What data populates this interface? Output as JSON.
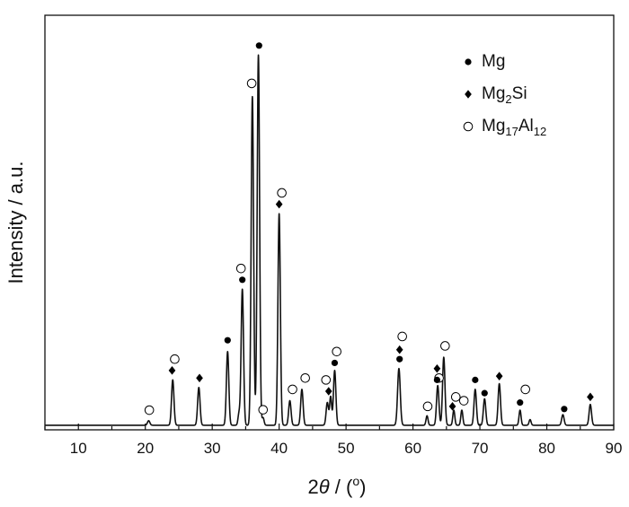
{
  "chart_data": {
    "type": "line",
    "title": "",
    "xlabel_parts": [
      "2",
      "θ",
      " / (",
      "o",
      ")"
    ],
    "ylabel": "Intensity / a.u.",
    "xlim": [
      5,
      90
    ],
    "ylim": [
      0,
      100
    ],
    "x_ticks": [
      10,
      20,
      30,
      40,
      50,
      60,
      70,
      80,
      90
    ],
    "x_tick_labels": [
      "10",
      "20",
      "30",
      "40",
      "50",
      "60",
      "70",
      "80",
      "90"
    ],
    "x_minor_step": 5,
    "y_ticks_shown": false,
    "grid": false,
    "legend_position": "top-right",
    "legend": [
      {
        "marker": "filled-circle",
        "parts": [
          [
            "Mg",
            "n"
          ]
        ]
      },
      {
        "marker": "filled-diamond",
        "parts": [
          [
            "Mg",
            "n"
          ],
          [
            "2",
            "sub"
          ],
          [
            "Si",
            "n"
          ]
        ]
      },
      {
        "marker": "open-circle",
        "parts": [
          [
            "Mg",
            "n"
          ],
          [
            "17",
            "sub"
          ],
          [
            "Al",
            "n"
          ],
          [
            "12",
            "sub"
          ]
        ]
      }
    ],
    "baseline": 0.5,
    "peaks": [
      {
        "x": 20.5,
        "h": 1.2,
        "w": 0.18
      },
      {
        "x": 24.1,
        "h": 12.0,
        "w": 0.18
      },
      {
        "x": 28.0,
        "h": 10.0,
        "w": 0.18
      },
      {
        "x": 32.3,
        "h": 19.5,
        "w": 0.18
      },
      {
        "x": 34.0,
        "h": 3.0,
        "w": 0.15
      },
      {
        "x": 34.5,
        "h": 36.0,
        "w": 0.18
      },
      {
        "x": 36.0,
        "h": 87.0,
        "w": 0.18
      },
      {
        "x": 36.9,
        "h": 98.0,
        "w": 0.18
      },
      {
        "x": 37.6,
        "h": 2.0,
        "w": 0.15
      },
      {
        "x": 40.0,
        "h": 56.0,
        "w": 0.18
      },
      {
        "x": 41.6,
        "h": 6.5,
        "w": 0.18
      },
      {
        "x": 43.4,
        "h": 9.5,
        "w": 0.18
      },
      {
        "x": 47.2,
        "h": 6.0,
        "w": 0.18
      },
      {
        "x": 47.7,
        "h": 7.5,
        "w": 0.15
      },
      {
        "x": 48.3,
        "h": 14.5,
        "w": 0.18
      },
      {
        "x": 57.9,
        "h": 15.0,
        "w": 0.2
      },
      {
        "x": 62.1,
        "h": 2.5,
        "w": 0.15
      },
      {
        "x": 63.7,
        "h": 10.5,
        "w": 0.18
      },
      {
        "x": 64.6,
        "h": 18.0,
        "w": 0.18
      },
      {
        "x": 66.1,
        "h": 4.0,
        "w": 0.15
      },
      {
        "x": 67.3,
        "h": 4.0,
        "w": 0.15
      },
      {
        "x": 69.3,
        "h": 9.5,
        "w": 0.18
      },
      {
        "x": 70.7,
        "h": 7.0,
        "w": 0.18
      },
      {
        "x": 72.9,
        "h": 11.0,
        "w": 0.18
      },
      {
        "x": 76.0,
        "h": 4.0,
        "w": 0.15
      },
      {
        "x": 77.5,
        "h": 1.5,
        "w": 0.15
      },
      {
        "x": 82.4,
        "h": 2.8,
        "w": 0.18
      },
      {
        "x": 86.5,
        "h": 5.5,
        "w": 0.18
      }
    ],
    "markers": [
      {
        "type": "open-circle",
        "x": 20.6,
        "y": 4.5
      },
      {
        "type": "open-circle",
        "x": 24.4,
        "y": 18.0
      },
      {
        "type": "filled-diamond",
        "x": 24.0,
        "y": 15.0
      },
      {
        "type": "filled-diamond",
        "x": 28.1,
        "y": 13.0
      },
      {
        "type": "filled-circle",
        "x": 32.3,
        "y": 23.0
      },
      {
        "type": "open-circle",
        "x": 34.3,
        "y": 42.0
      },
      {
        "type": "filled-circle",
        "x": 34.5,
        "y": 39.0
      },
      {
        "type": "open-circle",
        "x": 35.9,
        "y": 91.0
      },
      {
        "type": "filled-circle",
        "x": 37.0,
        "y": 101.0
      },
      {
        "type": "open-circle",
        "x": 37.6,
        "y": 4.6
      },
      {
        "type": "open-circle",
        "x": 40.4,
        "y": 62.0
      },
      {
        "type": "filled-diamond",
        "x": 40.0,
        "y": 59.0
      },
      {
        "type": "open-circle",
        "x": 42.0,
        "y": 10.0
      },
      {
        "type": "open-circle",
        "x": 43.9,
        "y": 13.0
      },
      {
        "type": "open-circle",
        "x": 47.0,
        "y": 12.5
      },
      {
        "type": "filled-diamond",
        "x": 47.4,
        "y": 9.5
      },
      {
        "type": "filled-circle",
        "x": 48.3,
        "y": 17.0
      },
      {
        "type": "open-circle",
        "x": 48.6,
        "y": 20.0
      },
      {
        "type": "filled-diamond",
        "x": 58.0,
        "y": 20.5
      },
      {
        "type": "filled-circle",
        "x": 58.0,
        "y": 18.0
      },
      {
        "type": "open-circle",
        "x": 58.4,
        "y": 24.0
      },
      {
        "type": "open-circle",
        "x": 62.2,
        "y": 5.5
      },
      {
        "type": "open-circle",
        "x": 63.9,
        "y": 13.0
      },
      {
        "type": "filled-diamond",
        "x": 63.6,
        "y": 15.5
      },
      {
        "type": "filled-circle",
        "x": 63.6,
        "y": 12.5
      },
      {
        "type": "open-circle",
        "x": 64.8,
        "y": 21.5
      },
      {
        "type": "open-circle",
        "x": 66.4,
        "y": 8.0
      },
      {
        "type": "filled-diamond",
        "x": 65.9,
        "y": 5.5
      },
      {
        "type": "open-circle",
        "x": 67.6,
        "y": 7.0
      },
      {
        "type": "filled-circle",
        "x": 69.3,
        "y": 12.5
      },
      {
        "type": "filled-circle",
        "x": 70.7,
        "y": 9.0
      },
      {
        "type": "filled-diamond",
        "x": 72.9,
        "y": 13.5
      },
      {
        "type": "filled-circle",
        "x": 76.0,
        "y": 6.5
      },
      {
        "type": "open-circle",
        "x": 76.8,
        "y": 10.0
      },
      {
        "type": "filled-circle",
        "x": 82.6,
        "y": 4.8
      },
      {
        "type": "filled-diamond",
        "x": 86.5,
        "y": 8.0
      }
    ]
  }
}
